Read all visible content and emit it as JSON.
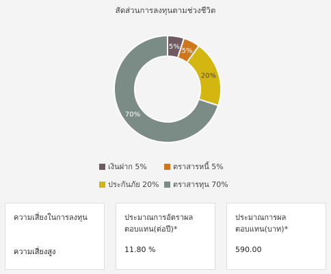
{
  "chart_data": {
    "type": "pie",
    "style": "donut",
    "title": "สัดส่วนการลงทุนตามช่วงชีวิต",
    "slices": [
      {
        "name": "เงินฝาก",
        "value": 5,
        "label": "5%",
        "color": "#6e5a60",
        "label_color": "#ffffff"
      },
      {
        "name": "ตราสารหนี้",
        "value": 5,
        "label": "5%",
        "color": "#d2761a",
        "label_color": "#ffffff"
      },
      {
        "name": "ประกันภัย",
        "value": 20,
        "label": "20%",
        "color": "#d4b610",
        "label_color": "#444444"
      },
      {
        "name": "ตราสารทุน",
        "value": 70,
        "label": "70%",
        "color": "#7b8b86",
        "label_color": "#ffffff"
      }
    ],
    "legend_position": "bottom"
  },
  "legend": [
    {
      "text": "เงินฝาก 5%",
      "color": "#6e5a60"
    },
    {
      "text": "ตราสารหนี้ 5%",
      "color": "#d2761a"
    },
    {
      "text": "ประกันภัย 20%",
      "color": "#d4b610"
    },
    {
      "text": "ตราสารทุน 70%",
      "color": "#7b8b86"
    }
  ],
  "cards": [
    {
      "label": "ความเสี่ยงในการลงทุน",
      "value": "ความเสี่ยงสูง"
    },
    {
      "label": "ประมาณการอัตราผล\nตอบแทน(ต่อปี)*",
      "value": "11.80 %"
    },
    {
      "label": "ประมาณการผล\nตอบแทน(บาท)*",
      "value": "590.00"
    }
  ]
}
